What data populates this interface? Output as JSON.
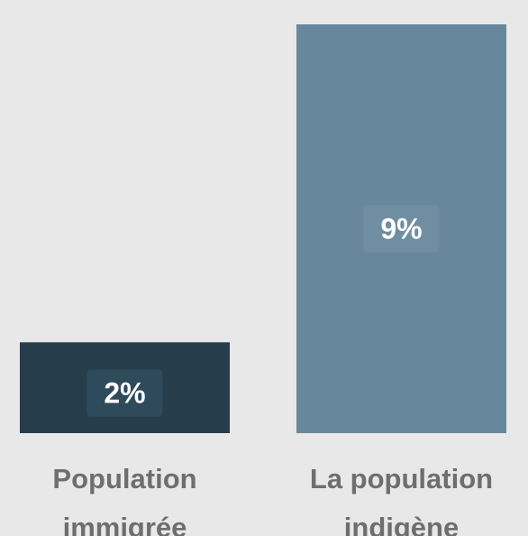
{
  "chart_data": {
    "type": "bar",
    "categories": [
      "Population immigrée",
      "La population indigène"
    ],
    "category_lines": [
      [
        "Population",
        "immigrée"
      ],
      [
        "La population",
        "indigène"
      ]
    ],
    "values": [
      2,
      9
    ],
    "value_labels": [
      "2%",
      "9%"
    ],
    "unit": "%",
    "title": "",
    "xlabel": "",
    "ylabel": "",
    "ylim": [
      0,
      9
    ],
    "grid": false,
    "legend": "none",
    "colors": [
      "#263e4c",
      "#67889c"
    ],
    "label_box_color": "#2f4a5a",
    "label_box_color_light": "#6f8ea2",
    "category_label_color": "#6e6e6e",
    "background": "#e8e8e8"
  }
}
